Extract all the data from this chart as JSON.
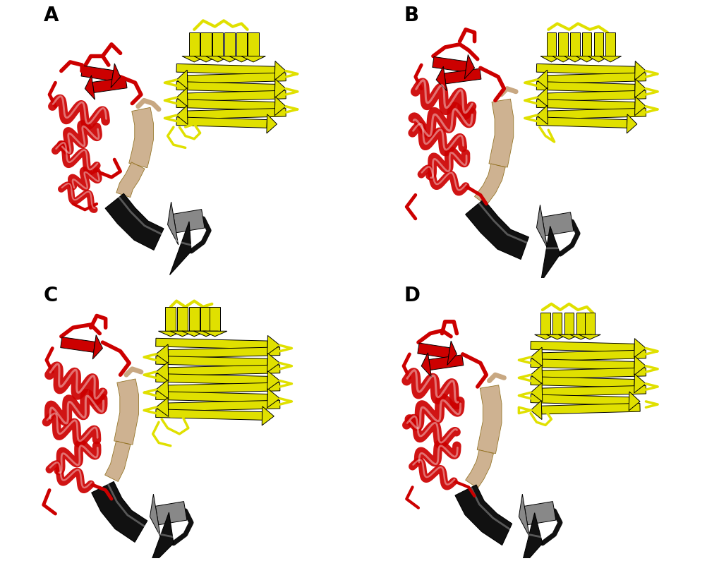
{
  "panels": [
    "A",
    "B",
    "C",
    "D"
  ],
  "colors": {
    "beta_roll": "#111111",
    "wing": "#CC0000",
    "beta_ladder": "#E0E000",
    "connector": "#C8A882",
    "connector_dark": "#8B6914",
    "gray_strand": "#888888",
    "background": "#FFFFFF",
    "yellow_dark": "#B8B800"
  },
  "label_fontsize": 20,
  "label_fontweight": "bold",
  "figsize": [
    10.19,
    7.95
  ],
  "dpi": 100
}
